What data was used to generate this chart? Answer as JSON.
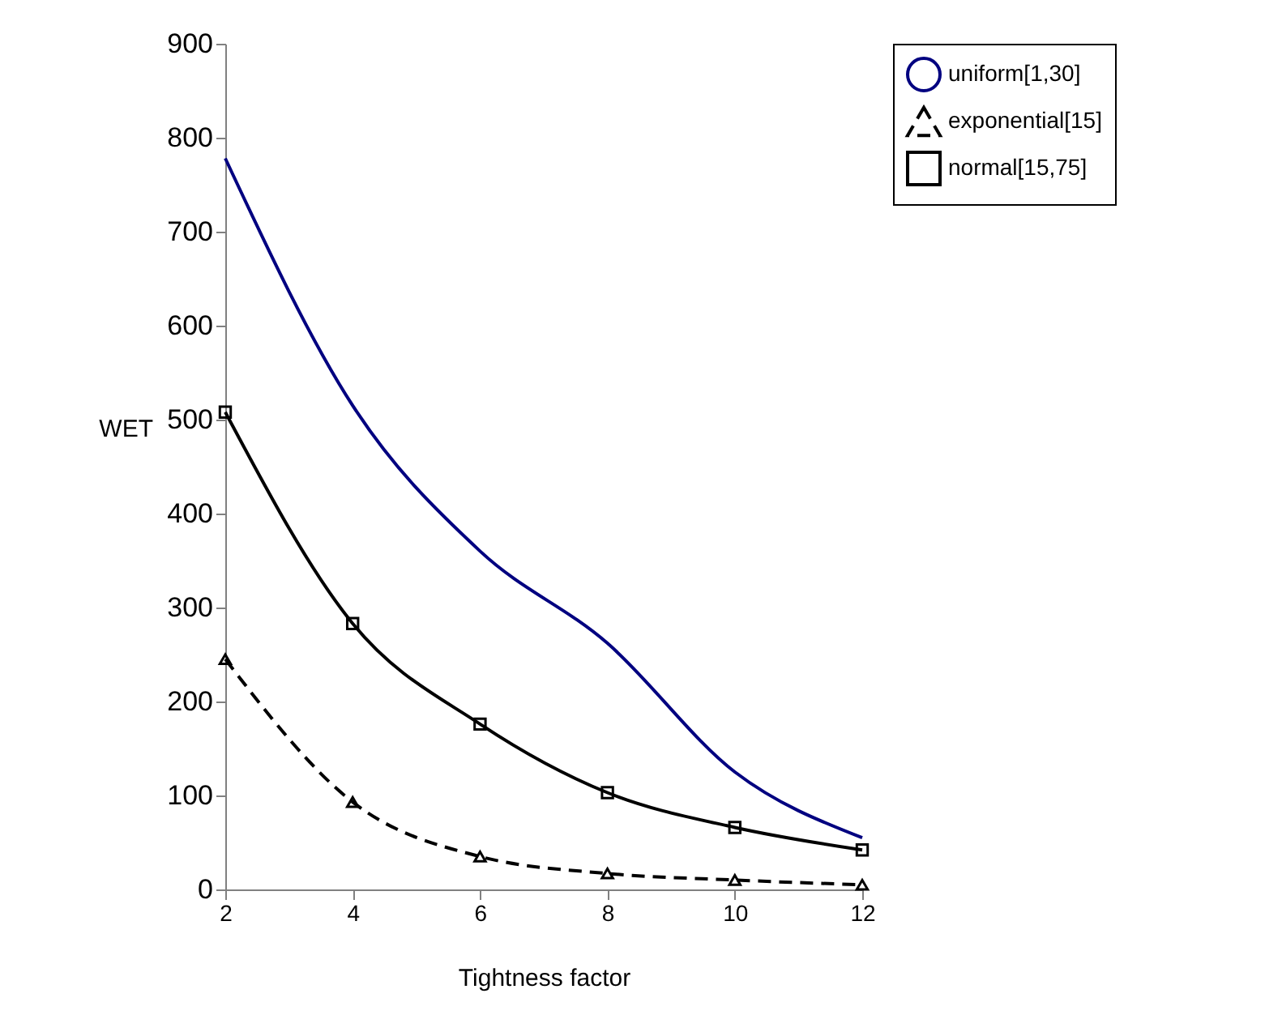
{
  "chart_data": {
    "type": "line",
    "xlabel": "Tightness factor",
    "ylabel": "WET",
    "x": [
      2,
      4,
      6,
      8,
      10,
      12
    ],
    "series": [
      {
        "name": "uniform[1,30]",
        "color": "#000080",
        "values": [
          778,
          515,
          360,
          262,
          125,
          55
        ],
        "marker": "none",
        "line_style": "solid"
      },
      {
        "name": "exponential[15]",
        "color": "#000000",
        "values": [
          245,
          93,
          35,
          17,
          10,
          5
        ],
        "marker": "triangle",
        "line_style": "dashed"
      },
      {
        "name": "normal[15,75]",
        "color": "#000000",
        "values": [
          508,
          283,
          176,
          103,
          66,
          42
        ],
        "marker": "square",
        "line_style": "solid"
      }
    ],
    "xlim": [
      2,
      12
    ],
    "xticks": [
      2,
      4,
      6,
      8,
      10,
      12
    ],
    "ylim": [
      0,
      900
    ],
    "yticks": [
      0,
      100,
      200,
      300,
      400,
      500,
      600,
      700,
      800,
      900
    ],
    "grid": false,
    "legend": "right"
  }
}
